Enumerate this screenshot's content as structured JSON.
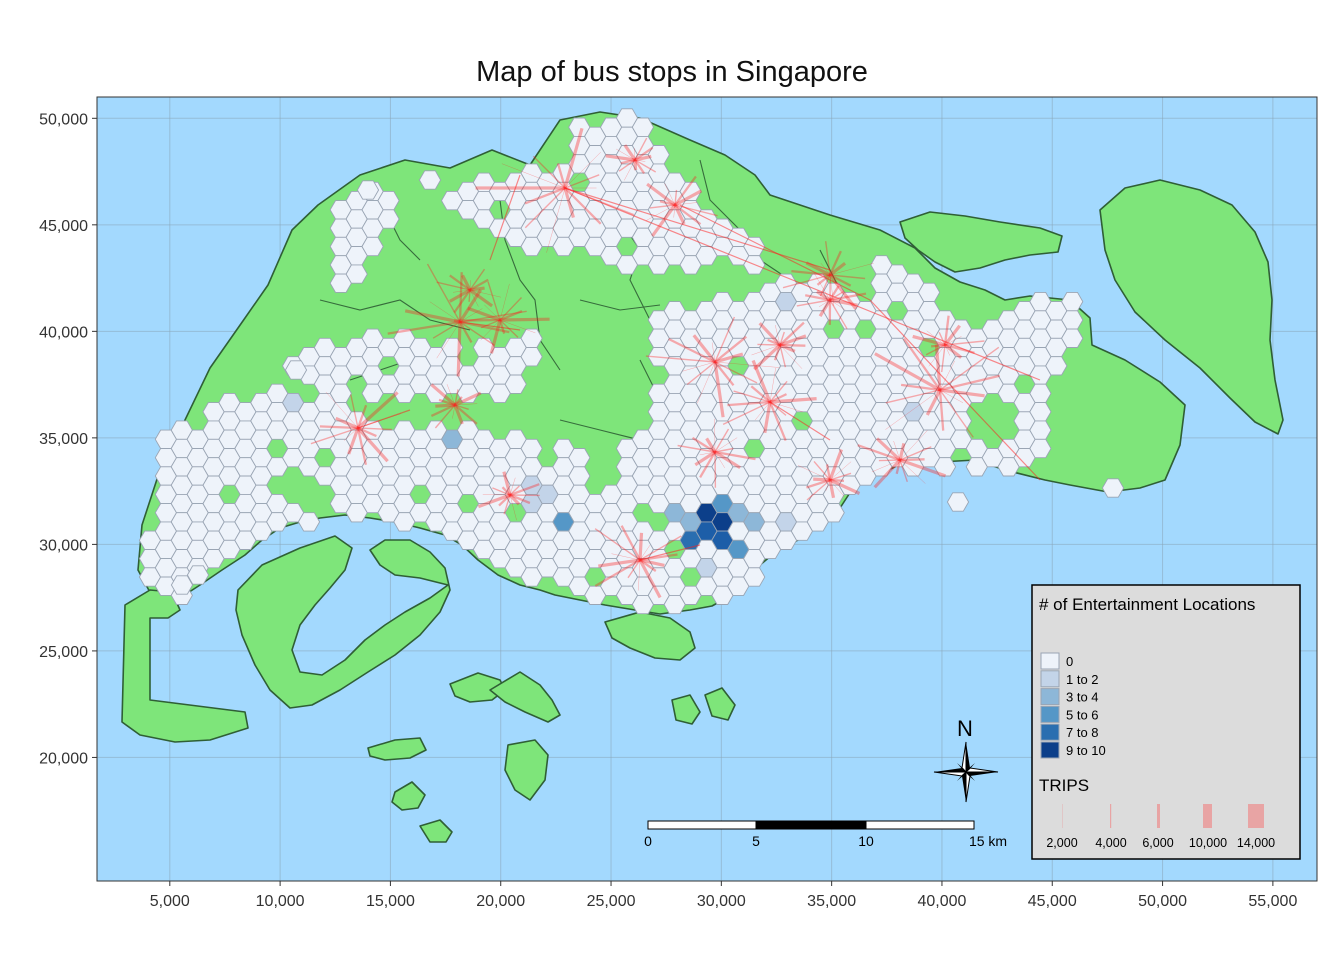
{
  "title": "Map of bus stops in Singapore",
  "colors": {
    "sea": "#a3d9fe",
    "land": "#7ee57a",
    "boundary": "#2f5f35",
    "flow": "#ff1b1b",
    "hex_stroke": "#9aa5b4"
  },
  "axes": {
    "x_ticks": [
      "5,000",
      "10,000",
      "15,000",
      "20,000",
      "25,000",
      "30,000",
      "35,000",
      "40,000",
      "45,000",
      "50,000",
      "55,000"
    ],
    "y_ticks": [
      "50,000",
      "45,000",
      "40,000",
      "35,000",
      "30,000",
      "25,000",
      "20,000"
    ],
    "x_range": [
      1700,
      57000
    ],
    "y_range": [
      14200,
      51000
    ]
  },
  "legend": {
    "fill_title": "# of Entertainment Locations",
    "fill_classes": [
      {
        "label": "0",
        "color": "#eef3fa"
      },
      {
        "label": "1 to 2",
        "color": "#c3d4e9"
      },
      {
        "label": "3 to 4",
        "color": "#8db7d8"
      },
      {
        "label": "5 to 6",
        "color": "#5597c7"
      },
      {
        "label": "7 to 8",
        "color": "#2a6eb0"
      },
      {
        "label": "9 to 10",
        "color": "#0c3f8a"
      }
    ],
    "trips_title": "TRIPS",
    "trips_labels": [
      "2,000",
      "4,000",
      "6,000",
      "10,000",
      "14,000"
    ]
  },
  "scalebar": {
    "labels": [
      "0",
      "5",
      "10",
      "15 km"
    ]
  },
  "north_arrow": {
    "label": "N",
    "icon": "compass-rose-icon"
  }
}
